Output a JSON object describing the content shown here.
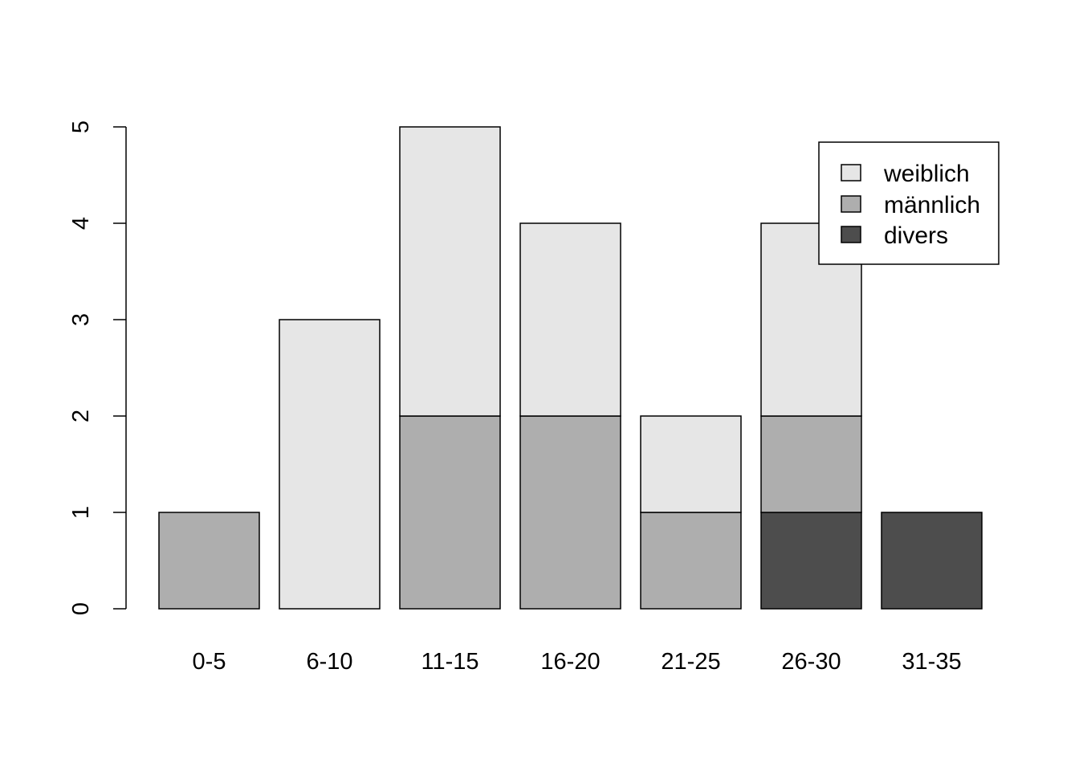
{
  "chart_data": {
    "type": "bar",
    "stacked": true,
    "categories": [
      "0-5",
      "6-10",
      "11-15",
      "16-20",
      "21-25",
      "26-30",
      "31-35"
    ],
    "series": [
      {
        "name": "divers",
        "color": "#4d4d4d",
        "values": [
          0,
          0,
          0,
          0,
          0,
          1,
          1
        ]
      },
      {
        "name": "männlich",
        "color": "#aeaeae",
        "values": [
          1,
          0,
          2,
          2,
          1,
          1,
          0
        ]
      },
      {
        "name": "weiblich",
        "color": "#e6e6e6",
        "values": [
          0,
          3,
          3,
          2,
          1,
          2,
          0
        ]
      }
    ],
    "ylim": [
      0,
      5
    ],
    "yticks": [
      0,
      1,
      2,
      3,
      4,
      5
    ],
    "xlabel": "",
    "ylabel": "",
    "title": "",
    "grid": false,
    "legend": {
      "position": "top-right",
      "entries": [
        "weiblich",
        "männlich",
        "divers"
      ]
    }
  }
}
